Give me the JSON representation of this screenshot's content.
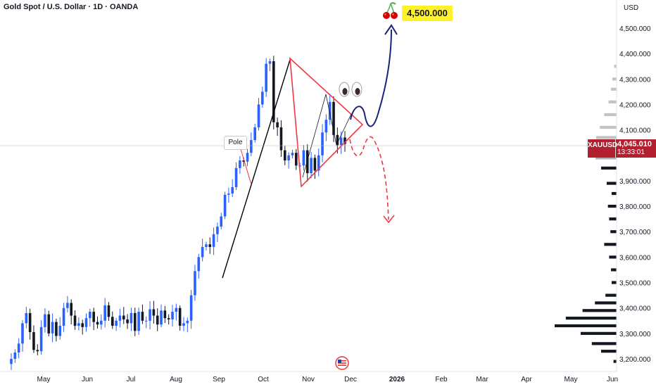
{
  "header": {
    "title": "Gold Spot / U.S. Dollar · 1D · OANDA",
    "currency": "USD"
  },
  "price_tag": {
    "symbol": "XAUUSD",
    "price": "4,045.010",
    "countdown": "13:33:01",
    "color": "#b2202f"
  },
  "annotations": {
    "target_label": "4,500.000",
    "pole_label": "Pole",
    "target_icon": "cherries-icon",
    "eyes_icon": "eyes-icon",
    "flag_icon": "us-flag-icon"
  },
  "colors": {
    "up": "#2962ff",
    "down": "#131722",
    "pattern": "#f23645",
    "bull_path": "#1a237e",
    "target_bg": "#fff12a"
  },
  "chart_data": {
    "type": "candlestick",
    "symbol": "XAUUSD",
    "timeframe": "1D",
    "x_tick_labels": [
      "May",
      "Jun",
      "Jul",
      "Aug",
      "Sep",
      "Oct",
      "Nov",
      "Dec",
      "2026",
      "Feb",
      "Mar",
      "Apr",
      "May",
      "Jun"
    ],
    "y_tick_labels": [
      "4,500.000",
      "4,400.000",
      "4,300.000",
      "4,200.000",
      "4,100.000",
      "3,900.000",
      "3,800.000",
      "3,700.000",
      "3,600.000",
      "3,500.000",
      "3,400.000",
      "3,300.000",
      "3,200.000"
    ],
    "ylim": [
      3170,
      4520
    ],
    "last_price": 4045.01,
    "close_series_approx": [
      3200,
      3225,
      3260,
      3340,
      3380,
      3305,
      3235,
      3230,
      3325,
      3375,
      3300,
      3345,
      3290,
      3330,
      3400,
      3420,
      3370,
      3330,
      3340,
      3325,
      3360,
      3385,
      3345,
      3335,
      3350,
      3410,
      3365,
      3330,
      3350,
      3370,
      3355,
      3340,
      3380,
      3310,
      3385,
      3350,
      3350,
      3395,
      3370,
      3335,
      3390,
      3360,
      3355,
      3385,
      3400,
      3330,
      3340,
      3350,
      3450,
      3545,
      3600,
      3640,
      3650,
      3640,
      3690,
      3720,
      3760,
      3845,
      3850,
      3875,
      3950,
      3980,
      3975,
      4010,
      4060,
      4110,
      4200,
      4250,
      4360,
      4370,
      4130,
      4110,
      4020,
      3980,
      4000,
      4010,
      3960,
      3960,
      4020,
      3930,
      3990,
      3940,
      4000,
      4090,
      4140,
      4210,
      4080,
      4040,
      4070,
      4045
    ],
    "volume_profile_bins": [
      {
        "price": 3190,
        "vol": 0.05
      },
      {
        "price": 3230,
        "vol": 0.25
      },
      {
        "price": 3260,
        "vol": 0.4
      },
      {
        "price": 3300,
        "vol": 0.58
      },
      {
        "price": 3330,
        "vol": 1.0
      },
      {
        "price": 3360,
        "vol": 0.82
      },
      {
        "price": 3390,
        "vol": 0.55
      },
      {
        "price": 3420,
        "vol": 0.35
      },
      {
        "price": 3450,
        "vol": 0.18
      },
      {
        "price": 3500,
        "vol": 0.08
      },
      {
        "price": 3550,
        "vol": 0.09
      },
      {
        "price": 3600,
        "vol": 0.12
      },
      {
        "price": 3650,
        "vol": 0.2
      },
      {
        "price": 3700,
        "vol": 0.1
      },
      {
        "price": 3750,
        "vol": 0.12
      },
      {
        "price": 3800,
        "vol": 0.14
      },
      {
        "price": 3850,
        "vol": 0.08
      },
      {
        "price": 3890,
        "vol": 0.16
      },
      {
        "price": 3950,
        "vol": 0.25
      },
      {
        "price": 3990,
        "vol": 0.34
      },
      {
        "price": 4030,
        "vol": 0.38
      },
      {
        "price": 4070,
        "vol": 0.33
      },
      {
        "price": 4110,
        "vol": 0.27
      },
      {
        "price": 4160,
        "vol": 0.2
      },
      {
        "price": 4210,
        "vol": 0.13
      },
      {
        "price": 4260,
        "vol": 0.09
      },
      {
        "price": 4300,
        "vol": 0.07
      },
      {
        "price": 4350,
        "vol": 0.04
      }
    ]
  }
}
